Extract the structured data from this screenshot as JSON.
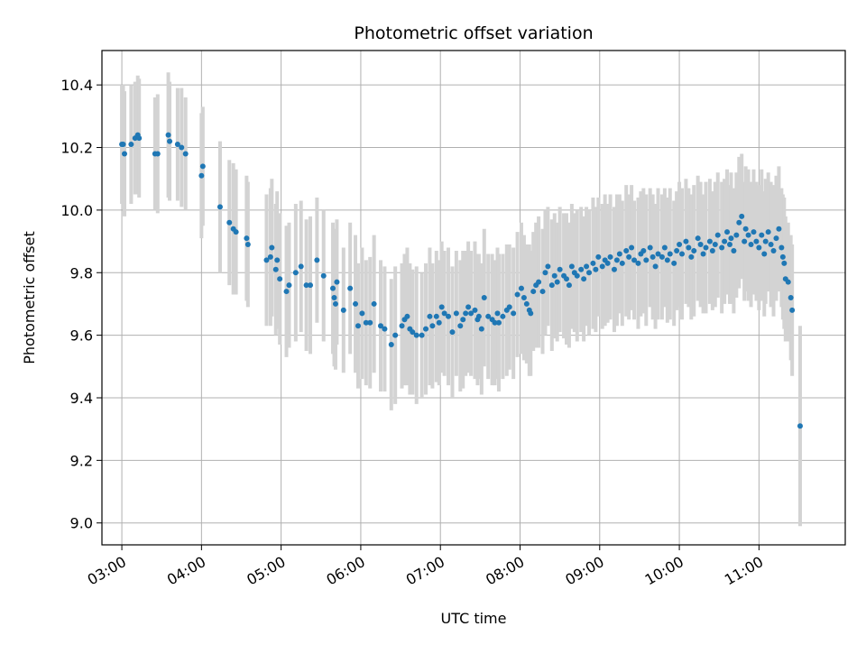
{
  "chart_data": {
    "type": "scatter",
    "title": "Photometric offset variation",
    "xlabel": "UTC time",
    "ylabel": "Photometric offset",
    "xlim": [
      "02:45",
      "12:05"
    ],
    "ylim": [
      8.93,
      10.51
    ],
    "xticks": [
      "03:00",
      "04:00",
      "05:00",
      "06:00",
      "07:00",
      "08:00",
      "09:00",
      "10:00",
      "11:00"
    ],
    "yticks": [
      9.0,
      9.2,
      9.4,
      9.6,
      9.8,
      10.0,
      10.2,
      10.4
    ],
    "grid": true,
    "marker_color": "#1f77b4",
    "errorbar_color": "#d3d3d3",
    "series": [
      {
        "x": [
          "03:00",
          "03:01",
          "03:02",
          "03:07",
          "03:10",
          "03:12",
          "03:13",
          "03:25",
          "03:27",
          "03:35",
          "03:36",
          "03:42",
          "03:45",
          "03:48",
          "04:00",
          "04:01",
          "04:14",
          "04:21",
          "04:24",
          "04:26",
          "04:34",
          "04:35",
          "04:49",
          "04:52",
          "04:53",
          "04:56",
          "04:57",
          "04:59",
          "05:04",
          "05:06",
          "05:11",
          "05:15",
          "05:19",
          "05:22",
          "05:27",
          "05:32",
          "05:39",
          "05:40",
          "05:41",
          "05:42",
          "05:47",
          "05:52",
          "05:56",
          "05:58",
          "06:01",
          "06:04",
          "06:07",
          "06:10",
          "06:15",
          "06:18",
          "06:23",
          "06:26",
          "06:31",
          "06:33",
          "06:35",
          "06:37",
          "06:39",
          "06:42",
          "06:46",
          "06:49",
          "06:52",
          "06:54",
          "06:57",
          "06:59",
          "07:01",
          "07:03",
          "07:06",
          "07:09",
          "07:12",
          "07:15",
          "07:17",
          "07:19",
          "07:21",
          "07:23",
          "07:26",
          "07:28",
          "07:29",
          "07:31",
          "07:33",
          "07:36",
          "07:39",
          "07:41",
          "07:43",
          "07:44",
          "07:47",
          "07:50",
          "07:52",
          "07:55",
          "07:58",
          "08:01",
          "08:03",
          "08:05",
          "08:07",
          "08:08",
          "08:10",
          "08:12",
          "08:14",
          "08:17",
          "08:19",
          "08:21",
          "08:24",
          "08:26",
          "08:28",
          "08:30",
          "08:33",
          "08:35",
          "08:37",
          "08:39",
          "08:41",
          "08:43",
          "08:46",
          "08:48",
          "08:50",
          "08:52",
          "08:55",
          "08:57",
          "08:59",
          "09:02",
          "09:04",
          "09:06",
          "09:08",
          "09:11",
          "09:13",
          "09:15",
          "09:17",
          "09:20",
          "09:22",
          "09:24",
          "09:26",
          "09:29",
          "09:31",
          "09:33",
          "09:35",
          "09:38",
          "09:40",
          "09:42",
          "09:44",
          "09:47",
          "09:49",
          "09:51",
          "09:53",
          "09:56",
          "09:58",
          "10:00",
          "10:02",
          "10:05",
          "10:07",
          "10:09",
          "10:11",
          "10:14",
          "10:16",
          "10:18",
          "10:20",
          "10:23",
          "10:25",
          "10:27",
          "10:29",
          "10:32",
          "10:34",
          "10:36",
          "10:38",
          "10:39",
          "10:41",
          "10:43",
          "10:45",
          "10:47",
          "10:49",
          "10:50",
          "10:52",
          "10:54",
          "10:56",
          "10:58",
          "11:00",
          "11:02",
          "11:04",
          "11:05",
          "11:07",
          "11:09",
          "11:11",
          "11:13",
          "11:15",
          "11:17",
          "11:18",
          "11:19",
          "11:20",
          "11:22",
          "11:24",
          "11:25",
          "11:31"
        ],
        "y": [
          10.21,
          10.21,
          10.18,
          10.21,
          10.23,
          10.24,
          10.23,
          10.18,
          10.18,
          10.24,
          10.22,
          10.21,
          10.2,
          10.18,
          10.11,
          10.14,
          10.01,
          9.96,
          9.94,
          9.93,
          9.91,
          9.89,
          9.84,
          9.85,
          9.88,
          9.81,
          9.84,
          9.78,
          9.74,
          9.76,
          9.8,
          9.82,
          9.76,
          9.76,
          9.84,
          9.79,
          9.75,
          9.72,
          9.7,
          9.77,
          9.68,
          9.75,
          9.7,
          9.63,
          9.67,
          9.64,
          9.64,
          9.7,
          9.63,
          9.62,
          9.57,
          9.6,
          9.63,
          9.65,
          9.66,
          9.62,
          9.61,
          9.6,
          9.6,
          9.62,
          9.66,
          9.63,
          9.66,
          9.64,
          9.69,
          9.67,
          9.66,
          9.61,
          9.67,
          9.63,
          9.65,
          9.67,
          9.69,
          9.67,
          9.68,
          9.65,
          9.66,
          9.62,
          9.72,
          9.66,
          9.65,
          9.64,
          9.67,
          9.64,
          9.66,
          9.68,
          9.69,
          9.67,
          9.73,
          9.75,
          9.72,
          9.7,
          9.68,
          9.67,
          9.74,
          9.76,
          9.77,
          9.74,
          9.8,
          9.82,
          9.76,
          9.79,
          9.77,
          9.81,
          9.79,
          9.78,
          9.76,
          9.82,
          9.8,
          9.79,
          9.81,
          9.78,
          9.82,
          9.8,
          9.83,
          9.81,
          9.85,
          9.82,
          9.84,
          9.83,
          9.85,
          9.81,
          9.84,
          9.86,
          9.83,
          9.87,
          9.85,
          9.88,
          9.84,
          9.83,
          9.86,
          9.87,
          9.84,
          9.88,
          9.85,
          9.82,
          9.86,
          9.85,
          9.88,
          9.84,
          9.86,
          9.83,
          9.87,
          9.89,
          9.86,
          9.9,
          9.88,
          9.85,
          9.87,
          9.91,
          9.89,
          9.86,
          9.88,
          9.9,
          9.87,
          9.89,
          9.92,
          9.88,
          9.9,
          9.93,
          9.89,
          9.91,
          9.87,
          9.92,
          9.96,
          9.98,
          9.9,
          9.94,
          9.92,
          9.89,
          9.93,
          9.9,
          9.88,
          9.92,
          9.86,
          9.9,
          9.93,
          9.89,
          9.87,
          9.91,
          9.94,
          9.88,
          9.85,
          9.83,
          9.78,
          9.77,
          9.72,
          9.68,
          9.31
        ],
        "y_error": [
          0.19,
          0.19,
          0.2,
          0.19,
          0.18,
          0.19,
          0.19,
          0.18,
          0.19,
          0.2,
          0.19,
          0.18,
          0.19,
          0.18,
          0.2,
          0.19,
          0.21,
          0.2,
          0.21,
          0.2,
          0.2,
          0.2,
          0.21,
          0.22,
          0.22,
          0.21,
          0.22,
          0.21,
          0.21,
          0.2,
          0.22,
          0.21,
          0.21,
          0.22,
          0.2,
          0.21,
          0.21,
          0.22,
          0.21,
          0.2,
          0.2,
          0.21,
          0.22,
          0.2,
          0.21,
          0.2,
          0.21,
          0.22,
          0.21,
          0.2,
          0.21,
          0.22,
          0.2,
          0.21,
          0.22,
          0.21,
          0.2,
          0.22,
          0.2,
          0.21,
          0.22,
          0.2,
          0.21,
          0.2,
          0.21,
          0.2,
          0.22,
          0.21,
          0.2,
          0.21,
          0.22,
          0.2,
          0.21,
          0.2,
          0.22,
          0.21,
          0.2,
          0.21,
          0.22,
          0.2,
          0.21,
          0.2,
          0.21,
          0.22,
          0.2,
          0.21,
          0.2,
          0.21,
          0.2,
          0.21,
          0.2,
          0.19,
          0.21,
          0.2,
          0.19,
          0.2,
          0.21,
          0.2,
          0.2,
          0.19,
          0.21,
          0.2,
          0.19,
          0.2,
          0.2,
          0.21,
          0.2,
          0.2,
          0.19,
          0.21,
          0.2,
          0.2,
          0.19,
          0.2,
          0.21,
          0.2,
          0.19,
          0.2,
          0.21,
          0.19,
          0.2,
          0.2,
          0.21,
          0.19,
          0.2,
          0.21,
          0.2,
          0.2,
          0.19,
          0.21,
          0.2,
          0.2,
          0.21,
          0.19,
          0.2,
          0.2,
          0.21,
          0.2,
          0.19,
          0.2,
          0.21,
          0.2,
          0.19,
          0.2,
          0.21,
          0.2,
          0.19,
          0.2,
          0.21,
          0.2,
          0.2,
          0.19,
          0.21,
          0.2,
          0.19,
          0.2,
          0.2,
          0.21,
          0.2,
          0.2,
          0.19,
          0.21,
          0.2,
          0.2,
          0.21,
          0.2,
          0.19,
          0.2,
          0.21,
          0.2,
          0.2,
          0.19,
          0.2,
          0.21,
          0.2,
          0.2,
          0.19,
          0.2,
          0.21,
          0.2,
          0.2,
          0.19,
          0.2,
          0.21,
          0.2,
          0.19,
          0.2,
          0.21,
          0.32
        ]
      }
    ]
  }
}
